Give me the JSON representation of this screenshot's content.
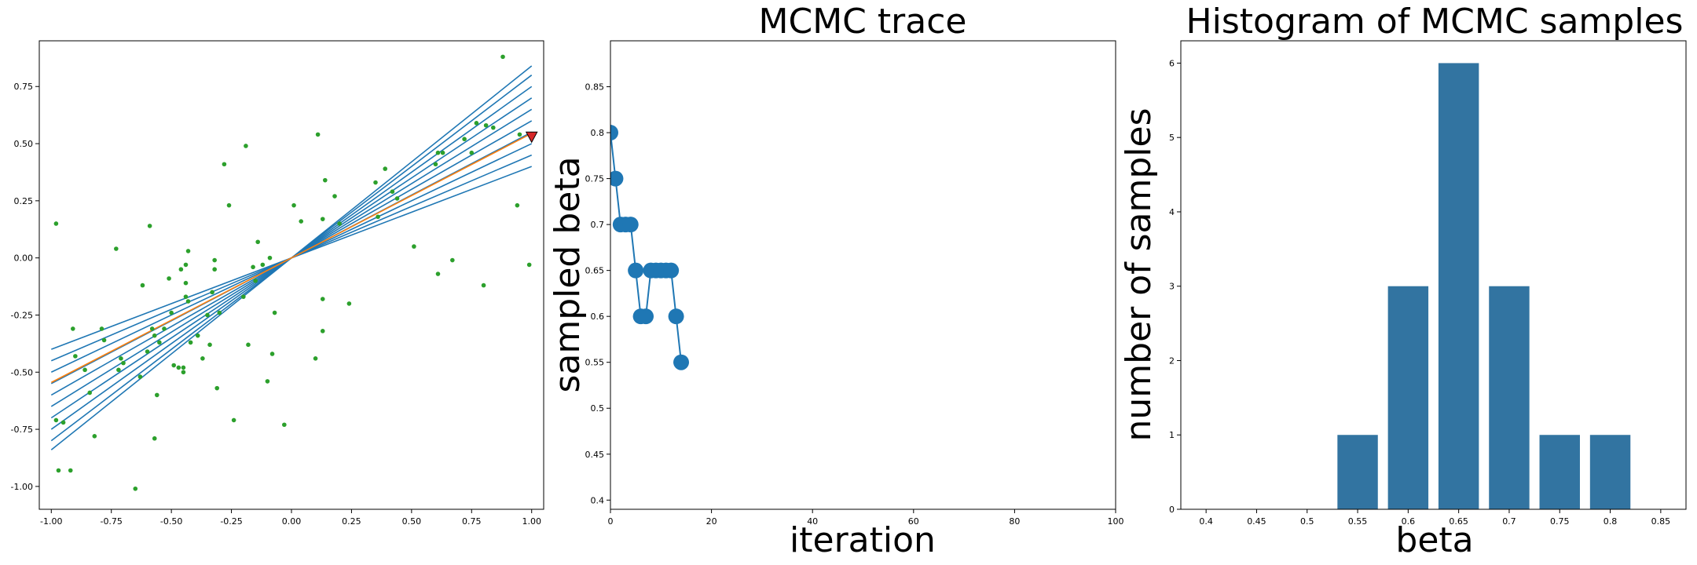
{
  "colors": {
    "fit_lines": "#1f77b4",
    "best_fit": "#ff7f0e",
    "points": "#2ca02c",
    "marker": "#d62728",
    "bars": "#3274a1"
  },
  "chart_data": [
    {
      "type": "scatter",
      "title": "",
      "xlabel": "",
      "ylabel": "",
      "xlim": [
        -1.05,
        1.05
      ],
      "ylim": [
        -1.1,
        0.95
      ],
      "xticks": [
        "-1.00",
        "-0.75",
        "-0.50",
        "-0.25",
        "0.00",
        "0.25",
        "0.50",
        "0.75",
        "1.00"
      ],
      "xtick_values": [
        -1.0,
        -0.75,
        -0.5,
        -0.25,
        0.0,
        0.25,
        0.5,
        0.75,
        1.0
      ],
      "yticks": [
        "-1.00",
        "-0.75",
        "-0.50",
        "-0.25",
        "0.00",
        "0.25",
        "0.50",
        "0.75"
      ],
      "ytick_values": [
        -1.0,
        -0.75,
        -0.5,
        -0.25,
        0.0,
        0.25,
        0.5,
        0.75
      ],
      "line_slopes": [
        0.4,
        0.45,
        0.5,
        0.55,
        0.6,
        0.65,
        0.7,
        0.75,
        0.8,
        0.84
      ],
      "best_slope": 0.545,
      "marker_point": [
        1.0,
        0.53
      ],
      "points": [
        [
          -0.98,
          0.15
        ],
        [
          -0.98,
          -0.71
        ],
        [
          -0.97,
          -0.93
        ],
        [
          -0.95,
          -0.72
        ],
        [
          -0.92,
          -0.93
        ],
        [
          -0.91,
          -0.31
        ],
        [
          -0.9,
          -0.43
        ],
        [
          -0.86,
          -0.49
        ],
        [
          -0.84,
          -0.59
        ],
        [
          -0.82,
          -0.78
        ],
        [
          -0.79,
          -0.31
        ],
        [
          -0.78,
          -0.36
        ],
        [
          -0.73,
          0.04
        ],
        [
          -0.72,
          -0.49
        ],
        [
          -0.71,
          -0.44
        ],
        [
          -0.7,
          -0.46
        ],
        [
          -0.65,
          -1.01
        ],
        [
          -0.63,
          -0.52
        ],
        [
          -0.62,
          -0.12
        ],
        [
          -0.6,
          -0.41
        ],
        [
          -0.59,
          0.14
        ],
        [
          -0.58,
          -0.31
        ],
        [
          -0.57,
          -0.34
        ],
        [
          -0.57,
          -0.79
        ],
        [
          -0.56,
          -0.6
        ],
        [
          -0.55,
          -0.37
        ],
        [
          -0.53,
          -0.31
        ],
        [
          -0.51,
          -0.09
        ],
        [
          -0.5,
          -0.24
        ],
        [
          -0.49,
          -0.47
        ],
        [
          -0.47,
          -0.48
        ],
        [
          -0.46,
          -0.05
        ],
        [
          -0.45,
          -0.5
        ],
        [
          -0.45,
          -0.48
        ],
        [
          -0.44,
          -0.11
        ],
        [
          -0.44,
          -0.17
        ],
        [
          -0.44,
          -0.03
        ],
        [
          -0.43,
          -0.19
        ],
        [
          -0.43,
          0.03
        ],
        [
          -0.42,
          -0.37
        ],
        [
          -0.39,
          -0.34
        ],
        [
          -0.37,
          -0.44
        ],
        [
          -0.35,
          -0.25
        ],
        [
          -0.34,
          -0.38
        ],
        [
          -0.33,
          -0.15
        ],
        [
          -0.32,
          -0.05
        ],
        [
          -0.32,
          -0.01
        ],
        [
          -0.31,
          -0.57
        ],
        [
          -0.3,
          -0.24
        ],
        [
          -0.28,
          0.41
        ],
        [
          -0.26,
          0.23
        ],
        [
          -0.24,
          -0.71
        ],
        [
          -0.2,
          -0.17
        ],
        [
          -0.19,
          0.49
        ],
        [
          -0.18,
          -0.38
        ],
        [
          -0.16,
          -0.04
        ],
        [
          -0.15,
          -0.1
        ],
        [
          -0.14,
          0.07
        ],
        [
          -0.12,
          -0.03
        ],
        [
          -0.1,
          -0.54
        ],
        [
          -0.09,
          0.0
        ],
        [
          -0.08,
          -0.42
        ],
        [
          -0.07,
          -0.24
        ],
        [
          -0.03,
          -0.73
        ],
        [
          0.01,
          0.23
        ],
        [
          0.04,
          0.16
        ],
        [
          0.1,
          -0.44
        ],
        [
          0.11,
          0.54
        ],
        [
          0.13,
          -0.18
        ],
        [
          0.13,
          -0.32
        ],
        [
          0.13,
          0.17
        ],
        [
          0.14,
          0.34
        ],
        [
          0.18,
          0.27
        ],
        [
          0.2,
          0.15
        ],
        [
          0.24,
          -0.2
        ],
        [
          0.35,
          0.33
        ],
        [
          0.36,
          0.18
        ],
        [
          0.39,
          0.39
        ],
        [
          0.42,
          0.29
        ],
        [
          0.44,
          0.26
        ],
        [
          0.51,
          0.05
        ],
        [
          0.6,
          0.41
        ],
        [
          0.61,
          0.46
        ],
        [
          0.61,
          -0.07
        ],
        [
          0.63,
          0.46
        ],
        [
          0.67,
          -0.01
        ],
        [
          0.72,
          0.52
        ],
        [
          0.75,
          0.46
        ],
        [
          0.77,
          0.59
        ],
        [
          0.8,
          -0.12
        ],
        [
          0.81,
          0.58
        ],
        [
          0.84,
          0.57
        ],
        [
          0.88,
          0.88
        ],
        [
          0.94,
          0.23
        ],
        [
          0.95,
          0.54
        ],
        [
          0.99,
          -0.03
        ]
      ]
    },
    {
      "type": "line",
      "title": "MCMC trace",
      "xlabel": "iteration",
      "ylabel": "sampled beta",
      "xlim": [
        0,
        100
      ],
      "ylim": [
        0.39,
        0.9
      ],
      "xticks": [
        "0",
        "20",
        "40",
        "60",
        "80",
        "100"
      ],
      "xtick_values": [
        0,
        20,
        40,
        60,
        80,
        100
      ],
      "yticks": [
        "0.4",
        "0.45",
        "0.5",
        "0.55",
        "0.6",
        "0.65",
        "0.7",
        "0.75",
        "0.8",
        "0.85"
      ],
      "ytick_values": [
        0.4,
        0.45,
        0.5,
        0.55,
        0.6,
        0.65,
        0.7,
        0.75,
        0.8,
        0.85
      ],
      "x": [
        0,
        1,
        2,
        3,
        4,
        5,
        6,
        7,
        8,
        9,
        10,
        11,
        12,
        13,
        14
      ],
      "y": [
        0.8,
        0.75,
        0.7,
        0.7,
        0.7,
        0.65,
        0.6,
        0.6,
        0.65,
        0.65,
        0.65,
        0.65,
        0.65,
        0.6,
        0.55
      ]
    },
    {
      "type": "bar",
      "title": "Histogram of MCMC samples",
      "xlabel": "beta",
      "ylabel": "number of samples",
      "xlim": [
        0.375,
        0.875
      ],
      "ylim": [
        0,
        6.3
      ],
      "xticks": [
        "0.4",
        "0.45",
        "0.5",
        "0.55",
        "0.6",
        "0.65",
        "0.7",
        "0.75",
        "0.8",
        "0.85"
      ],
      "xtick_values": [
        0.4,
        0.45,
        0.5,
        0.55,
        0.6,
        0.65,
        0.7,
        0.75,
        0.8,
        0.85
      ],
      "yticks": [
        "0",
        "1",
        "2",
        "3",
        "4",
        "5",
        "6"
      ],
      "ytick_values": [
        0,
        1,
        2,
        3,
        4,
        5,
        6
      ],
      "bar_width": 0.04,
      "categories": [
        0.55,
        0.6,
        0.65,
        0.7,
        0.75,
        0.8
      ],
      "values": [
        1,
        3,
        6,
        3,
        1,
        1
      ]
    }
  ]
}
